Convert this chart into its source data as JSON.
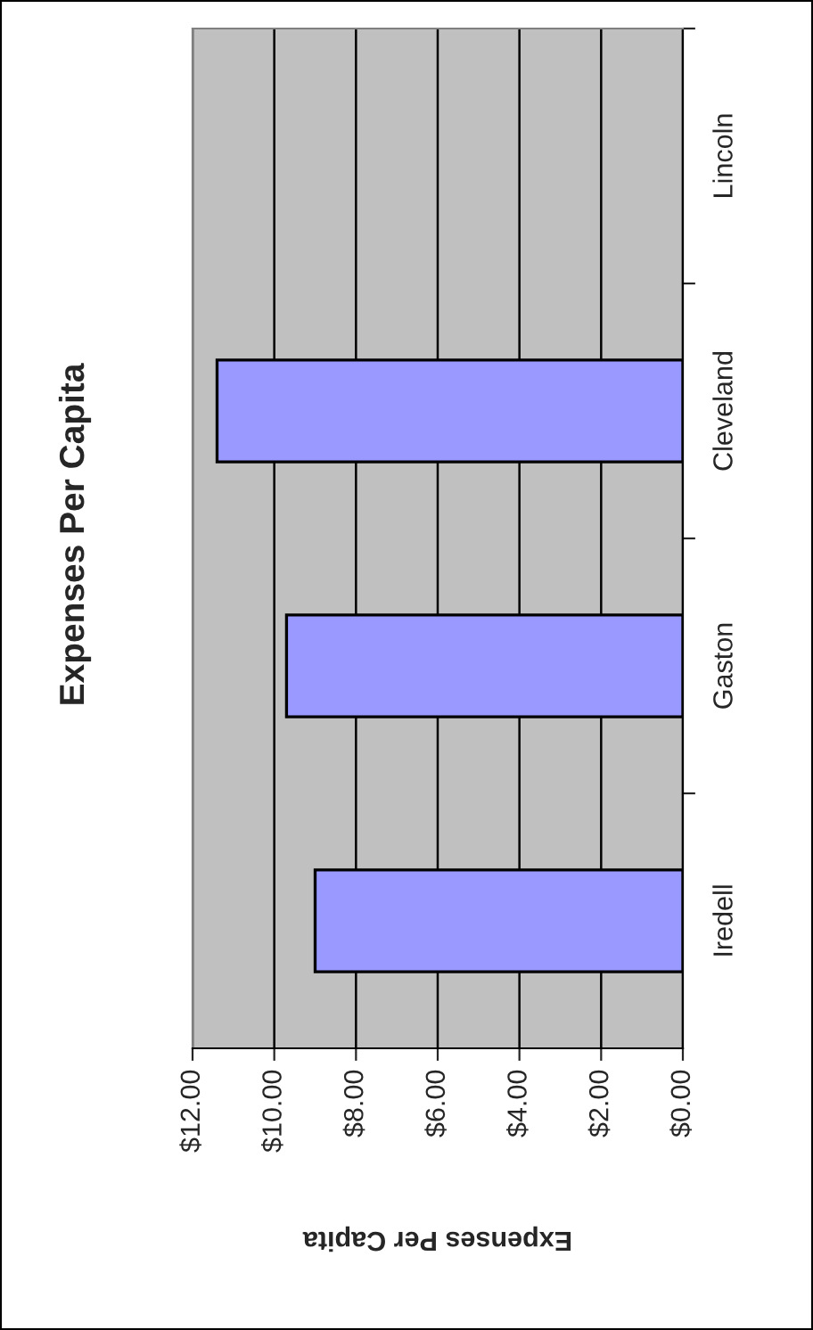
{
  "chart_data": {
    "type": "bar",
    "orientation": "horizontal",
    "title": "Expenses Per Capita",
    "xlabel": "Expenses Per Capita",
    "categories": [
      "Lincoln",
      "Cleveland",
      "Gaston",
      "Iredell"
    ],
    "values": [
      null,
      11.4,
      9.7,
      9.0
    ],
    "color": "#9999ff",
    "xlim": [
      12,
      0
    ],
    "xticks": [
      {
        "value": 12,
        "label": "$12.00"
      },
      {
        "value": 10,
        "label": "$10.00"
      },
      {
        "value": 8,
        "label": "$8.00"
      },
      {
        "value": 6,
        "label": "$6.00"
      },
      {
        "value": 4,
        "label": "$4.00"
      },
      {
        "value": 2,
        "label": "$2.00"
      },
      {
        "value": 0,
        "label": "$0.00"
      }
    ],
    "grid": "x"
  }
}
